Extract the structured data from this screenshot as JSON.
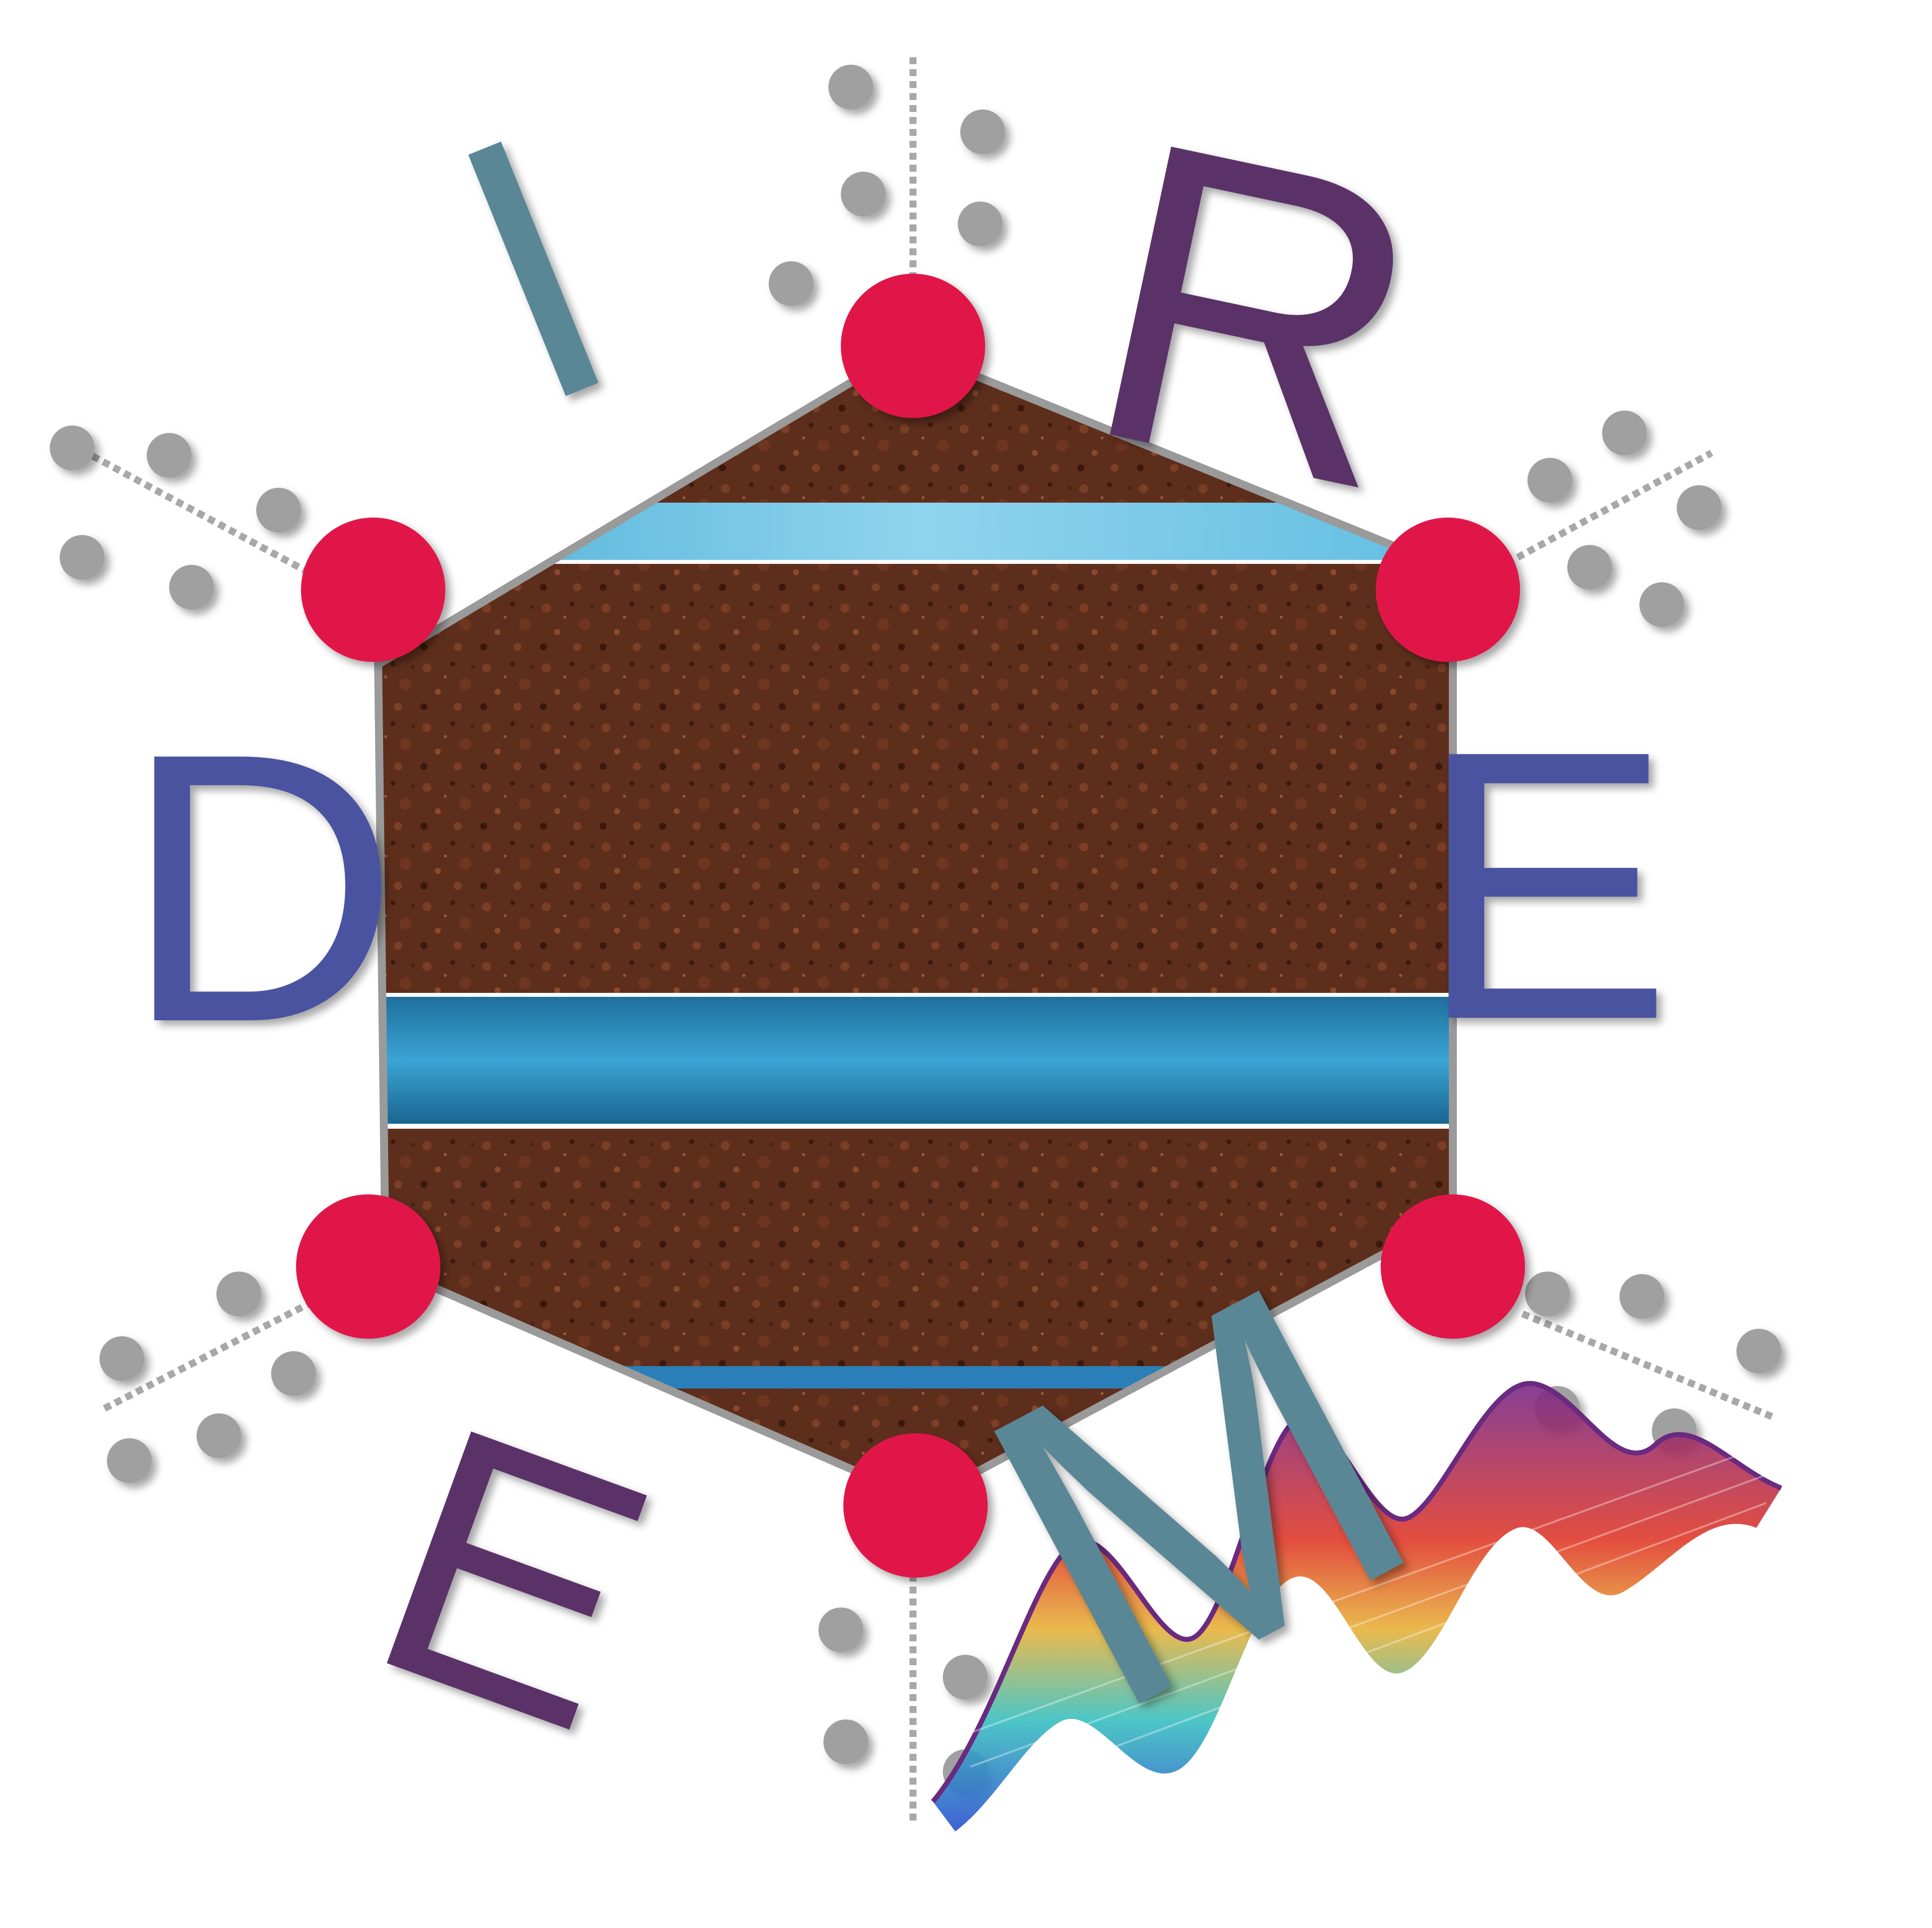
{
  "logo": {
    "letters": {
      "i": "I",
      "r": "R",
      "d": "D",
      "e_right": "E",
      "e_bottom": "E",
      "m": "M"
    },
    "colors": {
      "background": "#ffffff",
      "letter_teal": "#5a8796",
      "letter_purple": "#5a3068",
      "letter_blue": "#4a52a0",
      "vertex": "#e0174a",
      "dot": "#a0a0a0",
      "soil": "#5e2e1c",
      "water": "#2f8fc0",
      "water_light": "#6ac6e6"
    },
    "icons": [
      "soil-hexagon-icon",
      "water-layer-icon",
      "vertex-node-icon",
      "grey-dot-icon",
      "dashed-axis-icon",
      "wave-surface-icon"
    ]
  }
}
